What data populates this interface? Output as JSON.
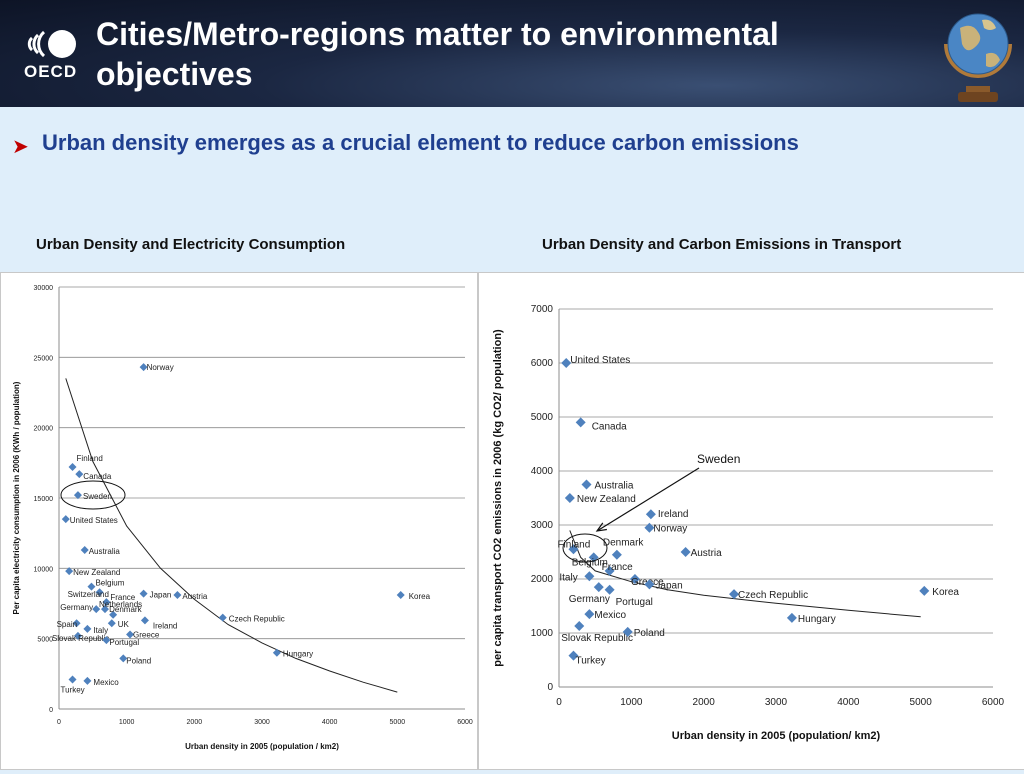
{
  "header": {
    "logo_text": "OECD",
    "title": "Cities/Metro-regions matter to environmental objectives"
  },
  "bullet": {
    "text": "Urban density emerges as a crucial element to reduce carbon emissions"
  },
  "charts_titles": {
    "left": "Urban Density and Electricity Consumption",
    "right": "Urban Density and Carbon Emissions in Transport"
  },
  "chart_data": [
    {
      "type": "scatter",
      "title": "Urban Density and Electricity Consumption",
      "xlabel": "Urban density in 2005 (population / km2)",
      "ylabel": "Per capita electricity consumption in 2006 (KWh / population)",
      "xlim": [
        0,
        6000
      ],
      "ylim": [
        0,
        30000
      ],
      "xticks": [
        0,
        1000,
        2000,
        3000,
        4000,
        5000,
        6000
      ],
      "yticks": [
        0,
        5000,
        10000,
        15000,
        20000,
        25000,
        30000
      ],
      "grid": "horizontal",
      "color": "#4f81bd",
      "highlight": "Sweden",
      "points": [
        {
          "label": "Norway",
          "x": 1250,
          "y": 24300
        },
        {
          "label": "Finland",
          "x": 200,
          "y": 17200
        },
        {
          "label": "Canada",
          "x": 300,
          "y": 16700
        },
        {
          "label": "Sweden",
          "x": 280,
          "y": 15200
        },
        {
          "label": "United States",
          "x": 100,
          "y": 13500
        },
        {
          "label": "Australia",
          "x": 380,
          "y": 11300
        },
        {
          "label": "New Zealand",
          "x": 150,
          "y": 9800
        },
        {
          "label": "Belgium",
          "x": 480,
          "y": 8700
        },
        {
          "label": "Switzerland",
          "x": 600,
          "y": 8300
        },
        {
          "label": "Japan",
          "x": 1250,
          "y": 8200
        },
        {
          "label": "Austria",
          "x": 1750,
          "y": 8100
        },
        {
          "label": "Korea",
          "x": 5050,
          "y": 8100
        },
        {
          "label": "France",
          "x": 700,
          "y": 7600
        },
        {
          "label": "Germany",
          "x": 550,
          "y": 7100
        },
        {
          "label": "Netherlands",
          "x": 680,
          "y": 7100
        },
        {
          "label": "Denmark",
          "x": 800,
          "y": 6700
        },
        {
          "label": "Czech Republic",
          "x": 2420,
          "y": 6500
        },
        {
          "label": "Spain",
          "x": 260,
          "y": 6100
        },
        {
          "label": "UK",
          "x": 780,
          "y": 6100
        },
        {
          "label": "Ireland",
          "x": 1270,
          "y": 6300
        },
        {
          "label": "Italy",
          "x": 420,
          "y": 5700
        },
        {
          "label": "Greece",
          "x": 1050,
          "y": 5300
        },
        {
          "label": "Slovak Republic",
          "x": 280,
          "y": 5200
        },
        {
          "label": "Portugal",
          "x": 700,
          "y": 4900
        },
        {
          "label": "Hungary",
          "x": 3220,
          "y": 4000
        },
        {
          "label": "Poland",
          "x": 950,
          "y": 3600
        },
        {
          "label": "Turkey",
          "x": 200,
          "y": 2100
        },
        {
          "label": "Mexico",
          "x": 420,
          "y": 2000
        }
      ],
      "trend": [
        [
          100,
          23500
        ],
        [
          500,
          17600
        ],
        [
          1000,
          13000
        ],
        [
          1500,
          10000
        ],
        [
          2000,
          7800
        ],
        [
          2500,
          6000
        ],
        [
          3000,
          4700
        ],
        [
          3500,
          3600
        ],
        [
          4000,
          2700
        ],
        [
          4500,
          1900
        ],
        [
          5000,
          1200
        ]
      ]
    },
    {
      "type": "scatter",
      "title": "Urban Density and Carbon Emissions in Transport",
      "xlabel": "Urban density in 2005 (population/ km2)",
      "ylabel": "per capita transport CO2 emissions in 2006 (kg CO2/ population)",
      "xlim": [
        0,
        6000
      ],
      "ylim": [
        0,
        7000
      ],
      "xticks": [
        0,
        1000,
        2000,
        3000,
        4000,
        5000,
        6000
      ],
      "yticks": [
        0,
        1000,
        2000,
        3000,
        4000,
        5000,
        6000,
        7000
      ],
      "grid": "horizontal",
      "color": "#4f81bd",
      "highlight": "Sweden",
      "annotation": "Sweden",
      "points": [
        {
          "label": "United States",
          "x": 100,
          "y": 6000
        },
        {
          "label": "Canada",
          "x": 300,
          "y": 4900
        },
        {
          "label": "Australia",
          "x": 380,
          "y": 3750
        },
        {
          "label": "New Zealand",
          "x": 150,
          "y": 3500
        },
        {
          "label": "Ireland",
          "x": 1270,
          "y": 3200
        },
        {
          "label": "Norway",
          "x": 1250,
          "y": 2950
        },
        {
          "label": "Finland",
          "x": 200,
          "y": 2550
        },
        {
          "label": "Denmark",
          "x": 800,
          "y": 2450
        },
        {
          "label": "Austria",
          "x": 1750,
          "y": 2500
        },
        {
          "label": "Belgium",
          "x": 480,
          "y": 2400
        },
        {
          "label": "France",
          "x": 700,
          "y": 2150
        },
        {
          "label": "Italy",
          "x": 420,
          "y": 2050
        },
        {
          "label": "Greece",
          "x": 1050,
          "y": 2000
        },
        {
          "label": "Japan",
          "x": 1250,
          "y": 1900
        },
        {
          "label": "Germany",
          "x": 550,
          "y": 1850
        },
        {
          "label": "Portugal",
          "x": 700,
          "y": 1800
        },
        {
          "label": "Czech Republic",
          "x": 2420,
          "y": 1720
        },
        {
          "label": "Korea",
          "x": 5050,
          "y": 1780
        },
        {
          "label": "Mexico",
          "x": 420,
          "y": 1350
        },
        {
          "label": "Hungary",
          "x": 3220,
          "y": 1280
        },
        {
          "label": "Slovak Republic",
          "x": 280,
          "y": 1130
        },
        {
          "label": "Poland",
          "x": 950,
          "y": 1020
        },
        {
          "label": "Turkey",
          "x": 200,
          "y": 580
        }
      ],
      "trend": [
        [
          150,
          2900
        ],
        [
          300,
          2400
        ],
        [
          500,
          2150
        ],
        [
          1000,
          1950
        ],
        [
          1500,
          1800
        ],
        [
          2000,
          1700
        ],
        [
          3000,
          1550
        ],
        [
          4000,
          1420
        ],
        [
          5000,
          1300
        ]
      ]
    }
  ]
}
